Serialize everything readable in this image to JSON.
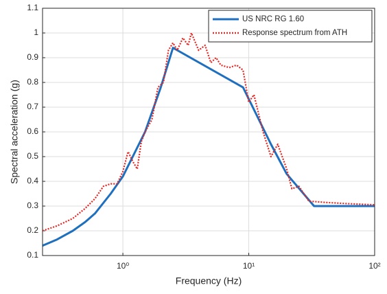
{
  "chart_data": {
    "type": "line",
    "xlabel": "Frequency (Hz)",
    "ylabel": "Spectral acceleration (g)",
    "xscale": "log",
    "xlim": [
      0.23,
      100
    ],
    "ylim": [
      0.1,
      1.1
    ],
    "xticks": [
      {
        "value": 1,
        "label": "10⁰"
      },
      {
        "value": 10,
        "label": "10¹"
      },
      {
        "value": 100,
        "label": "10²"
      }
    ],
    "yticks": [
      0.1,
      0.2,
      0.3,
      0.4,
      0.5,
      0.6,
      0.7,
      0.8,
      0.9,
      1,
      1.1
    ],
    "grid": true,
    "legend": "top-right",
    "series": [
      {
        "name": "US NRC RG 1.60",
        "color": "#1f6fbf",
        "style": "solid",
        "x": [
          0.23,
          0.3,
          0.4,
          0.5,
          0.6,
          0.8,
          1,
          1.5,
          2,
          2.5,
          9,
          15,
          20,
          33,
          100
        ],
        "values": [
          0.14,
          0.165,
          0.2,
          0.235,
          0.27,
          0.35,
          0.42,
          0.6,
          0.78,
          0.94,
          0.78,
          0.55,
          0.43,
          0.3,
          0.3
        ]
      },
      {
        "name": "Response spectrum from ATH",
        "color": "#e8231f",
        "style": "dotted",
        "x": [
          0.23,
          0.3,
          0.4,
          0.5,
          0.6,
          0.7,
          0.8,
          0.9,
          1.0,
          1.1,
          1.2,
          1.3,
          1.4,
          1.5,
          1.7,
          1.9,
          2.1,
          2.3,
          2.5,
          2.7,
          3.0,
          3.3,
          3.5,
          4,
          4.5,
          5,
          5.5,
          6,
          7,
          8,
          9,
          10,
          11,
          13,
          15,
          17,
          20,
          22,
          25,
          30,
          40,
          60,
          100
        ],
        "values": [
          0.2,
          0.22,
          0.25,
          0.29,
          0.33,
          0.38,
          0.39,
          0.39,
          0.44,
          0.52,
          0.48,
          0.45,
          0.56,
          0.6,
          0.65,
          0.78,
          0.8,
          0.93,
          0.96,
          0.93,
          0.98,
          0.95,
          1.0,
          0.93,
          0.95,
          0.88,
          0.9,
          0.87,
          0.86,
          0.87,
          0.85,
          0.72,
          0.75,
          0.6,
          0.5,
          0.55,
          0.45,
          0.37,
          0.38,
          0.32,
          0.315,
          0.31,
          0.305
        ]
      }
    ]
  }
}
